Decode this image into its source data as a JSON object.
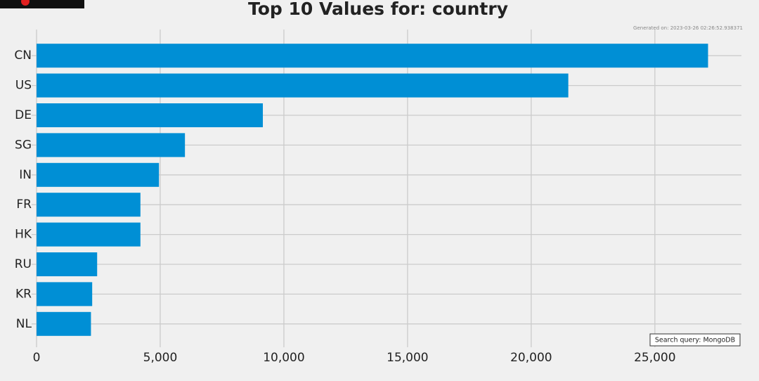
{
  "chart_data": {
    "type": "bar",
    "orientation": "horizontal",
    "title": "Top 10 Values for: country",
    "subtitle": "Generated on: 2023-03-26 02:26:52.938371",
    "annotation": "Search query: MongoDB",
    "categories": [
      "CN",
      "US",
      "DE",
      "SG",
      "IN",
      "FR",
      "HK",
      "RU",
      "KR",
      "NL"
    ],
    "values": [
      27150,
      21500,
      9150,
      6000,
      4950,
      4200,
      4200,
      2450,
      2250,
      2200
    ],
    "color": "#008fd5",
    "xlim": [
      0,
      28500
    ],
    "xticks": [
      0,
      {
        "value": 5000,
        "label": "5,000"
      },
      {
        "value": 10000,
        "label": "10,000"
      },
      {
        "value": 15000,
        "label": "15,000"
      },
      {
        "value": 20000,
        "label": "20,000"
      },
      {
        "value": 25000,
        "label": "25,000"
      }
    ],
    "grid": true
  }
}
